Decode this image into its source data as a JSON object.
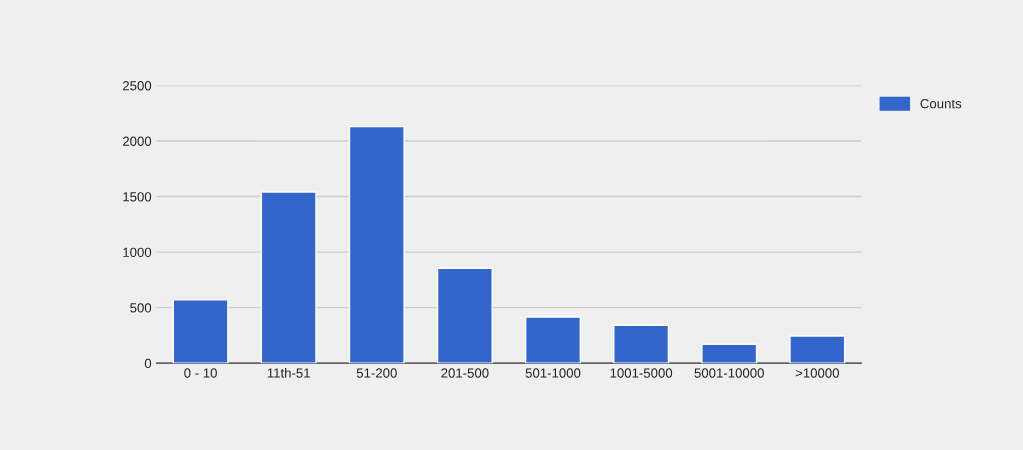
{
  "chart_data": {
    "type": "bar",
    "categories": [
      "0 - 10",
      "11th-51",
      "51-200",
      "201-500",
      "501-1000",
      "1001-5000",
      "5001-10000",
      ">10000"
    ],
    "series": [
      {
        "name": "Counts",
        "color": "#3366cc",
        "values": [
          570,
          1540,
          2130,
          855,
          415,
          340,
          170,
          245
        ]
      }
    ],
    "ylim": [
      0,
      2500
    ],
    "yticks": [
      0,
      500,
      1000,
      1500,
      2000,
      2500
    ],
    "grid": "y",
    "legend": "top right"
  }
}
